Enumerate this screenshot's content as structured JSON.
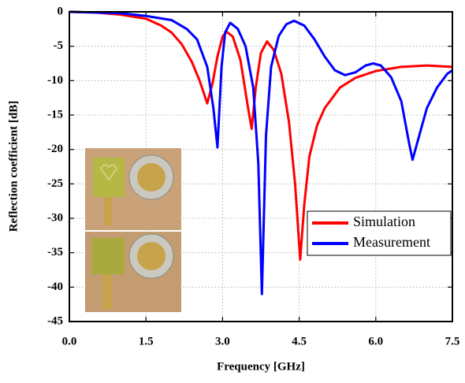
{
  "chart_data": {
    "type": "line",
    "xlabel": "Frequency [GHz]",
    "ylabel": "Reflection coefficient [dB]",
    "xlim": [
      0,
      7.5
    ],
    "ylim": [
      -45,
      0
    ],
    "xticks": [
      {
        "value": 0,
        "label": "0.0"
      },
      1.5,
      {
        "value": 3,
        "label": "3.0"
      },
      4.5,
      {
        "value": 6,
        "label": "6.0"
      },
      7.5
    ],
    "yticks": [
      0,
      -5,
      -10,
      -15,
      -20,
      -25,
      -30,
      -35,
      -40,
      -45
    ],
    "grid": true,
    "legend": "center right",
    "series": [
      {
        "name": "Simulation",
        "color": "#ff0000",
        "x": [
          0,
          0.5,
          1.0,
          1.5,
          1.8,
          2.0,
          2.2,
          2.4,
          2.55,
          2.7,
          2.8,
          2.9,
          3.0,
          3.08,
          3.2,
          3.35,
          3.5,
          3.57,
          3.65,
          3.75,
          3.87,
          4.0,
          4.15,
          4.3,
          4.42,
          4.52,
          4.6,
          4.7,
          4.85,
          5.0,
          5.3,
          5.6,
          6.0,
          6.5,
          7.0,
          7.5
        ],
        "values": [
          0,
          -0.1,
          -0.4,
          -1.0,
          -2.0,
          -3.0,
          -4.7,
          -7.3,
          -10.0,
          -13.3,
          -10.5,
          -6.5,
          -3.6,
          -2.9,
          -3.6,
          -7.0,
          -14.0,
          -17.0,
          -11.0,
          -6.0,
          -4.3,
          -5.5,
          -9.0,
          -16.0,
          -25.0,
          -36.0,
          -28.0,
          -21.0,
          -16.5,
          -14.0,
          -11.0,
          -9.6,
          -8.6,
          -8.0,
          -7.8,
          -8.0
        ]
      },
      {
        "name": "Measurement",
        "color": "#0000ff",
        "x": [
          0,
          0.5,
          1.0,
          1.5,
          2.0,
          2.3,
          2.5,
          2.7,
          2.82,
          2.9,
          2.98,
          3.05,
          3.15,
          3.3,
          3.45,
          3.6,
          3.7,
          3.77,
          3.85,
          3.95,
          4.1,
          4.25,
          4.4,
          4.6,
          4.8,
          5.0,
          5.2,
          5.4,
          5.6,
          5.8,
          5.95,
          6.1,
          6.3,
          6.5,
          6.65,
          6.72,
          6.85,
          7.0,
          7.2,
          7.4,
          7.5
        ],
        "values": [
          0,
          -0.1,
          -0.2,
          -0.6,
          -1.2,
          -2.5,
          -4.0,
          -8.0,
          -14.0,
          -19.7,
          -8.0,
          -3.0,
          -1.6,
          -2.5,
          -5.0,
          -11.0,
          -22.0,
          -41.0,
          -18.0,
          -8.0,
          -3.5,
          -1.8,
          -1.3,
          -2.0,
          -4.0,
          -6.5,
          -8.5,
          -9.2,
          -8.8,
          -7.8,
          -7.5,
          -7.8,
          -9.5,
          -13.0,
          -19.0,
          -21.5,
          -18.0,
          -14.0,
          -11.0,
          -9.0,
          -8.5
        ]
      }
    ]
  }
}
